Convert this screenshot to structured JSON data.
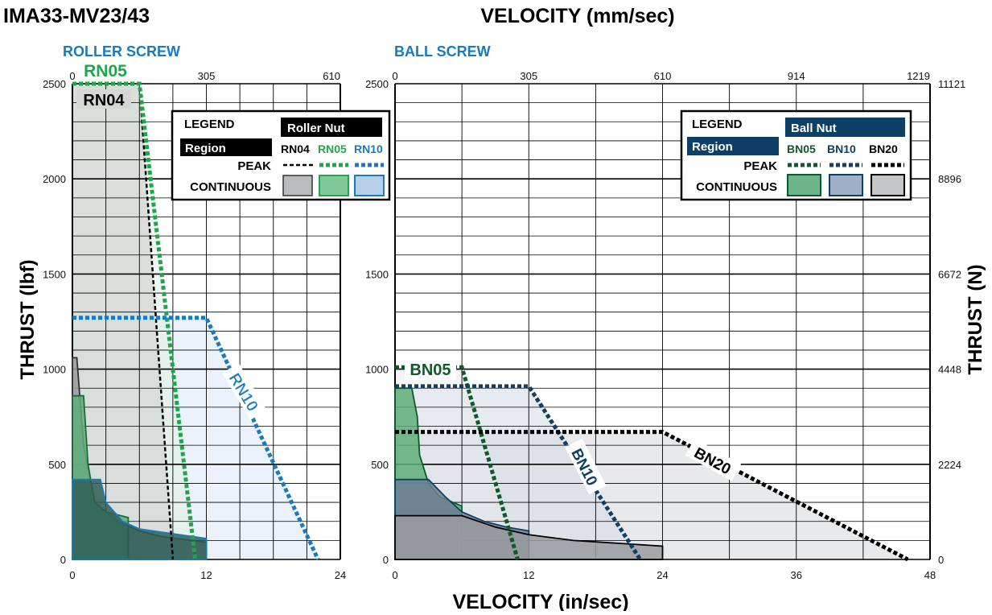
{
  "title": "IMA33-MV23/43",
  "top_axis_title": "VELOCITY (mm/sec)",
  "bottom_axis_title": "VELOCITY (in/sec)",
  "left_axis_title": "THRUST (lbf)",
  "right_axis_title": "THRUST (N)",
  "colors": {
    "rn04": "#000000",
    "rn05": "#1fa64b",
    "rn10": "#1a7abf",
    "bn05": "#0e5a2c",
    "bn10": "#0e3f66",
    "bn20": "#000000",
    "roller_title": "#1a7abf",
    "ball_header": "#0e3f66"
  },
  "roller_legend": {
    "legend": "LEGEND",
    "header": "Roller Nut",
    "region": "Region",
    "peak": "PEAK",
    "continuous": "CONTINUOUS",
    "cols": [
      "RN04",
      "RN05",
      "RN10"
    ]
  },
  "ball_legend": {
    "legend": "LEGEND",
    "header": "Ball Nut",
    "region": "Region",
    "peak": "PEAK",
    "continuous": "CONTINUOUS",
    "cols": [
      "BN05",
      "BN10",
      "BN20"
    ]
  },
  "chart_data": [
    {
      "type": "area",
      "title": "ROLLER SCREW",
      "xlabel": "VELOCITY (in/sec)",
      "x2label": "VELOCITY (mm/sec)",
      "ylabel": "THRUST (lbf)",
      "xlim": [
        0,
        24
      ],
      "ylim": [
        0,
        2500
      ],
      "x_ticks": [
        "0",
        "12",
        "24"
      ],
      "x2_ticks": [
        "0",
        "305",
        "610"
      ],
      "y_ticks": [
        "0",
        "500",
        "1000",
        "1500",
        "2000",
        "2500"
      ],
      "grid": true,
      "series": [
        {
          "name": "RN04",
          "peak": [
            [
              0,
              2500
            ],
            [
              6,
              2500
            ],
            [
              9,
              0
            ]
          ],
          "continuous": [
            [
              0,
              1060
            ],
            [
              0.4,
              1060
            ],
            [
              1,
              600
            ],
            [
              2,
              300
            ],
            [
              4,
              200
            ],
            [
              6,
              150
            ],
            [
              8,
              120
            ],
            [
              12,
              90
            ],
            [
              12,
              0
            ],
            [
              0,
              0
            ]
          ]
        },
        {
          "name": "RN05",
          "peak": [
            [
              0,
              2500
            ],
            [
              6,
              2500
            ],
            [
              11,
              0
            ]
          ],
          "continuous": [
            [
              0,
              860
            ],
            [
              1,
              860
            ],
            [
              1.4,
              500
            ],
            [
              2,
              300
            ],
            [
              3,
              250
            ],
            [
              5,
              220
            ],
            [
              5,
              0
            ],
            [
              0,
              0
            ]
          ]
        },
        {
          "name": "RN10",
          "peak": [
            [
              0,
              1270
            ],
            [
              12,
              1270
            ],
            [
              22,
              0
            ]
          ],
          "continuous": [
            [
              0,
              420
            ],
            [
              2.5,
              420
            ],
            [
              3,
              300
            ],
            [
              4.5,
              200
            ],
            [
              6,
              160
            ],
            [
              12,
              110
            ],
            [
              12,
              0
            ],
            [
              0,
              0
            ]
          ]
        }
      ],
      "labels": [
        "RN05",
        "RN04",
        "RN10"
      ]
    },
    {
      "type": "area",
      "title": "BALL SCREW",
      "xlabel": "VELOCITY (in/sec)",
      "x2label": "VELOCITY (mm/sec)",
      "ylabel": "THRUST (lbf)",
      "y2label": "THRUST (N)",
      "xlim": [
        0,
        48
      ],
      "ylim": [
        0,
        2500
      ],
      "x_ticks": [
        "0",
        "12",
        "24",
        "36",
        "48"
      ],
      "x2_ticks": [
        "0",
        "305",
        "610",
        "914",
        "1219"
      ],
      "y_ticks": [
        "0",
        "500",
        "1000",
        "1500",
        "2000",
        "2500"
      ],
      "y2_ticks": [
        "0",
        "2224",
        "4448",
        "6672",
        "8896",
        "11121"
      ],
      "grid": true,
      "series": [
        {
          "name": "BN05",
          "peak": [
            [
              0,
              1010
            ],
            [
              6,
              1010
            ],
            [
              11,
              0
            ]
          ],
          "continuous": [
            [
              0,
              900
            ],
            [
              1.5,
              900
            ],
            [
              2,
              750
            ],
            [
              2.2,
              550
            ],
            [
              3,
              400
            ],
            [
              4,
              330
            ],
            [
              6,
              280
            ],
            [
              6,
              0
            ],
            [
              0,
              0
            ]
          ]
        },
        {
          "name": "BN10",
          "peak": [
            [
              0,
              910
            ],
            [
              12,
              910
            ],
            [
              22,
              0
            ]
          ],
          "continuous": [
            [
              0,
              420
            ],
            [
              3,
              420
            ],
            [
              4.5,
              330
            ],
            [
              6,
              250
            ],
            [
              8,
              200
            ],
            [
              10,
              170
            ],
            [
              12,
              150
            ],
            [
              12,
              0
            ],
            [
              0,
              0
            ]
          ]
        },
        {
          "name": "BN20",
          "peak": [
            [
              0,
              670
            ],
            [
              24,
              670
            ],
            [
              46,
              0
            ]
          ],
          "continuous": [
            [
              0,
              230
            ],
            [
              6,
              230
            ],
            [
              9,
              170
            ],
            [
              12,
              130
            ],
            [
              16,
              100
            ],
            [
              20,
              85
            ],
            [
              24,
              70
            ],
            [
              24,
              0
            ],
            [
              0,
              0
            ]
          ]
        }
      ],
      "labels": [
        "BN05",
        "BN10",
        "BN20"
      ]
    }
  ]
}
